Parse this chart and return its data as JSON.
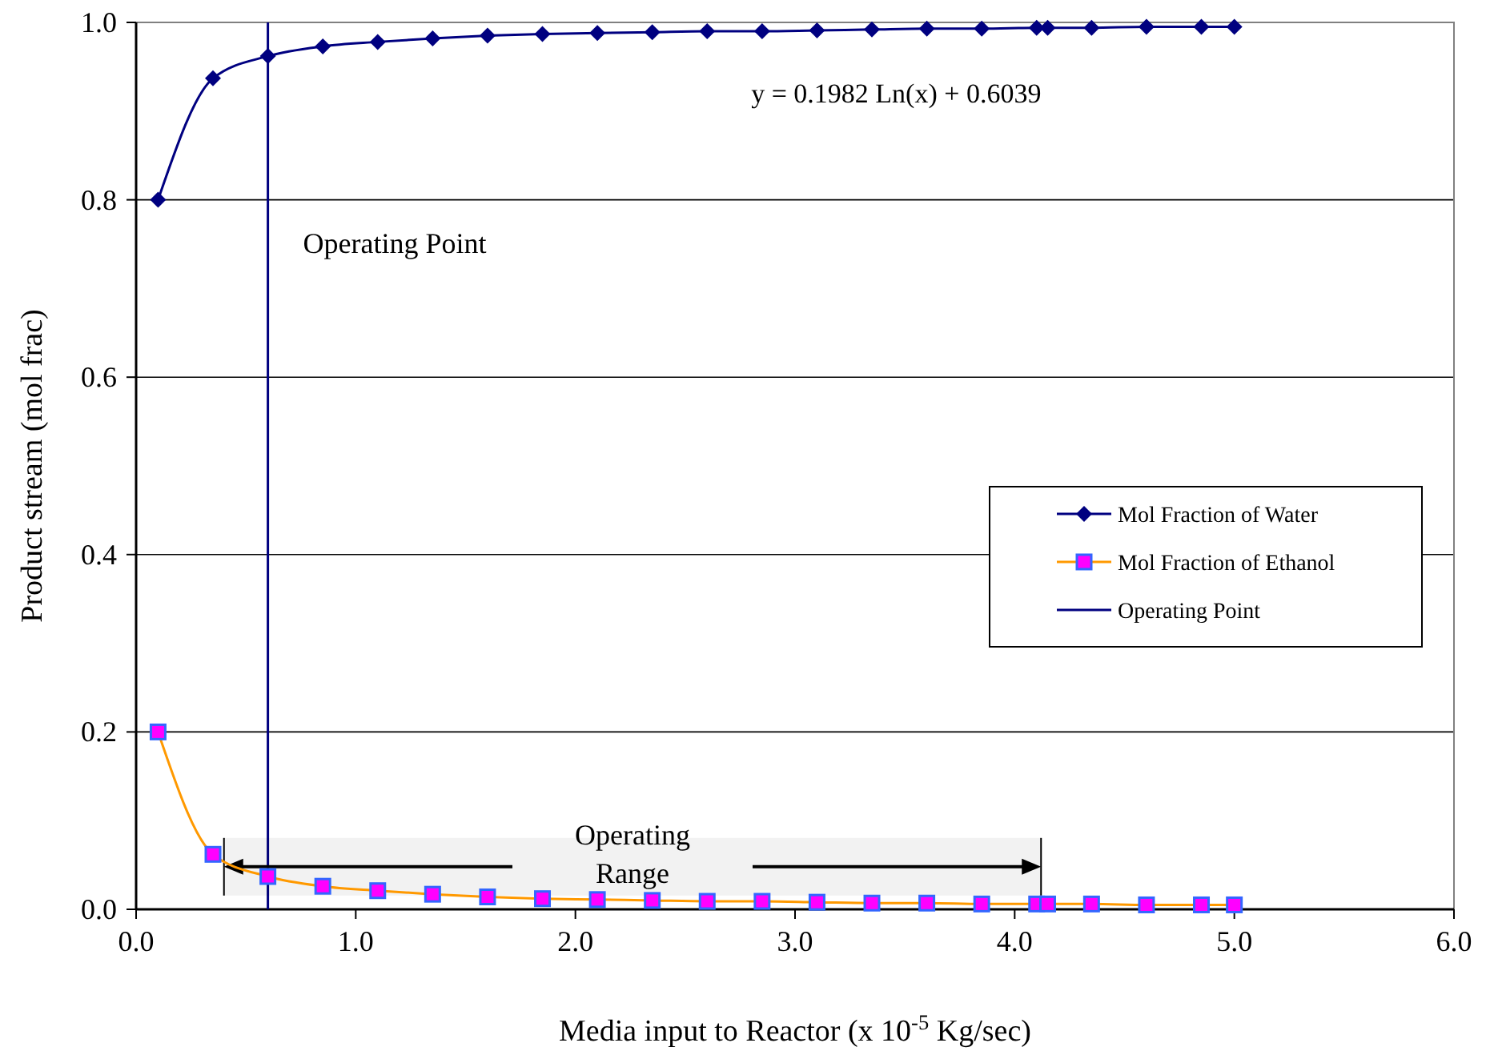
{
  "chart_data": {
    "type": "line",
    "xlabel": "Media input to Reactor (x 10$^{-5}$ Kg/sec)",
    "ylabel": "Product stream (mol frac)",
    "x": [
      0.1,
      0.35,
      0.6,
      0.85,
      1.1,
      1.35,
      1.6,
      1.85,
      2.1,
      2.35,
      2.6,
      2.85,
      3.1,
      3.35,
      3.6,
      3.85,
      4.1,
      4.15,
      4.35,
      4.6,
      4.85,
      5.0
    ],
    "series": [
      {
        "name": "Mol Fraction of Water",
        "color": "#000080",
        "marker": "diamond",
        "values": [
          0.8,
          0.937,
          0.962,
          0.973,
          0.978,
          0.982,
          0.985,
          0.987,
          0.988,
          0.989,
          0.99,
          0.99,
          0.991,
          0.992,
          0.993,
          0.993,
          0.994,
          0.994,
          0.994,
          0.995,
          0.995,
          0.995
        ]
      },
      {
        "name": "Mol Fraction of Ethanol",
        "color": "#ff9900",
        "marker": "square",
        "values": [
          0.2,
          0.062,
          0.037,
          0.026,
          0.021,
          0.017,
          0.014,
          0.012,
          0.011,
          0.01,
          0.009,
          0.009,
          0.008,
          0.007,
          0.007,
          0.006,
          0.006,
          0.006,
          0.006,
          0.005,
          0.005,
          0.005
        ]
      }
    ],
    "xlim": [
      0,
      6
    ],
    "xticks": [
      {
        "value": 0,
        "label": "0.0"
      },
      {
        "value": 1,
        "label": "1.0"
      },
      {
        "value": 2,
        "label": "2.0"
      },
      {
        "value": 3,
        "label": "3.0"
      },
      {
        "value": 4,
        "label": "4.0"
      },
      {
        "value": 5,
        "label": "5.0"
      },
      {
        "value": 6,
        "label": "6.0"
      }
    ],
    "ylim": [
      0,
      1
    ],
    "yticks": [
      {
        "value": 0,
        "label": "0.0"
      },
      {
        "value": 0.2,
        "label": "0.2"
      },
      {
        "value": 0.4,
        "label": "0.4"
      },
      {
        "value": 0.6,
        "label": "0.6"
      },
      {
        "value": 0.8,
        "label": "0.8"
      },
      {
        "value": 1,
        "label": "1.0"
      }
    ],
    "grid": "y",
    "legend": "right",
    "line_style": "solid",
    "ref_lines": [
      {
        "axis": "x",
        "value": 0.6,
        "label": "Operating Point",
        "color": "#000080"
      }
    ],
    "bands": [
      {
        "axis": "x",
        "from": 0.4,
        "to": 4.12,
        "label": "Operating Range"
      }
    ],
    "annotations": [
      "y = 0.1982 Ln(x) + 0.6039"
    ]
  }
}
